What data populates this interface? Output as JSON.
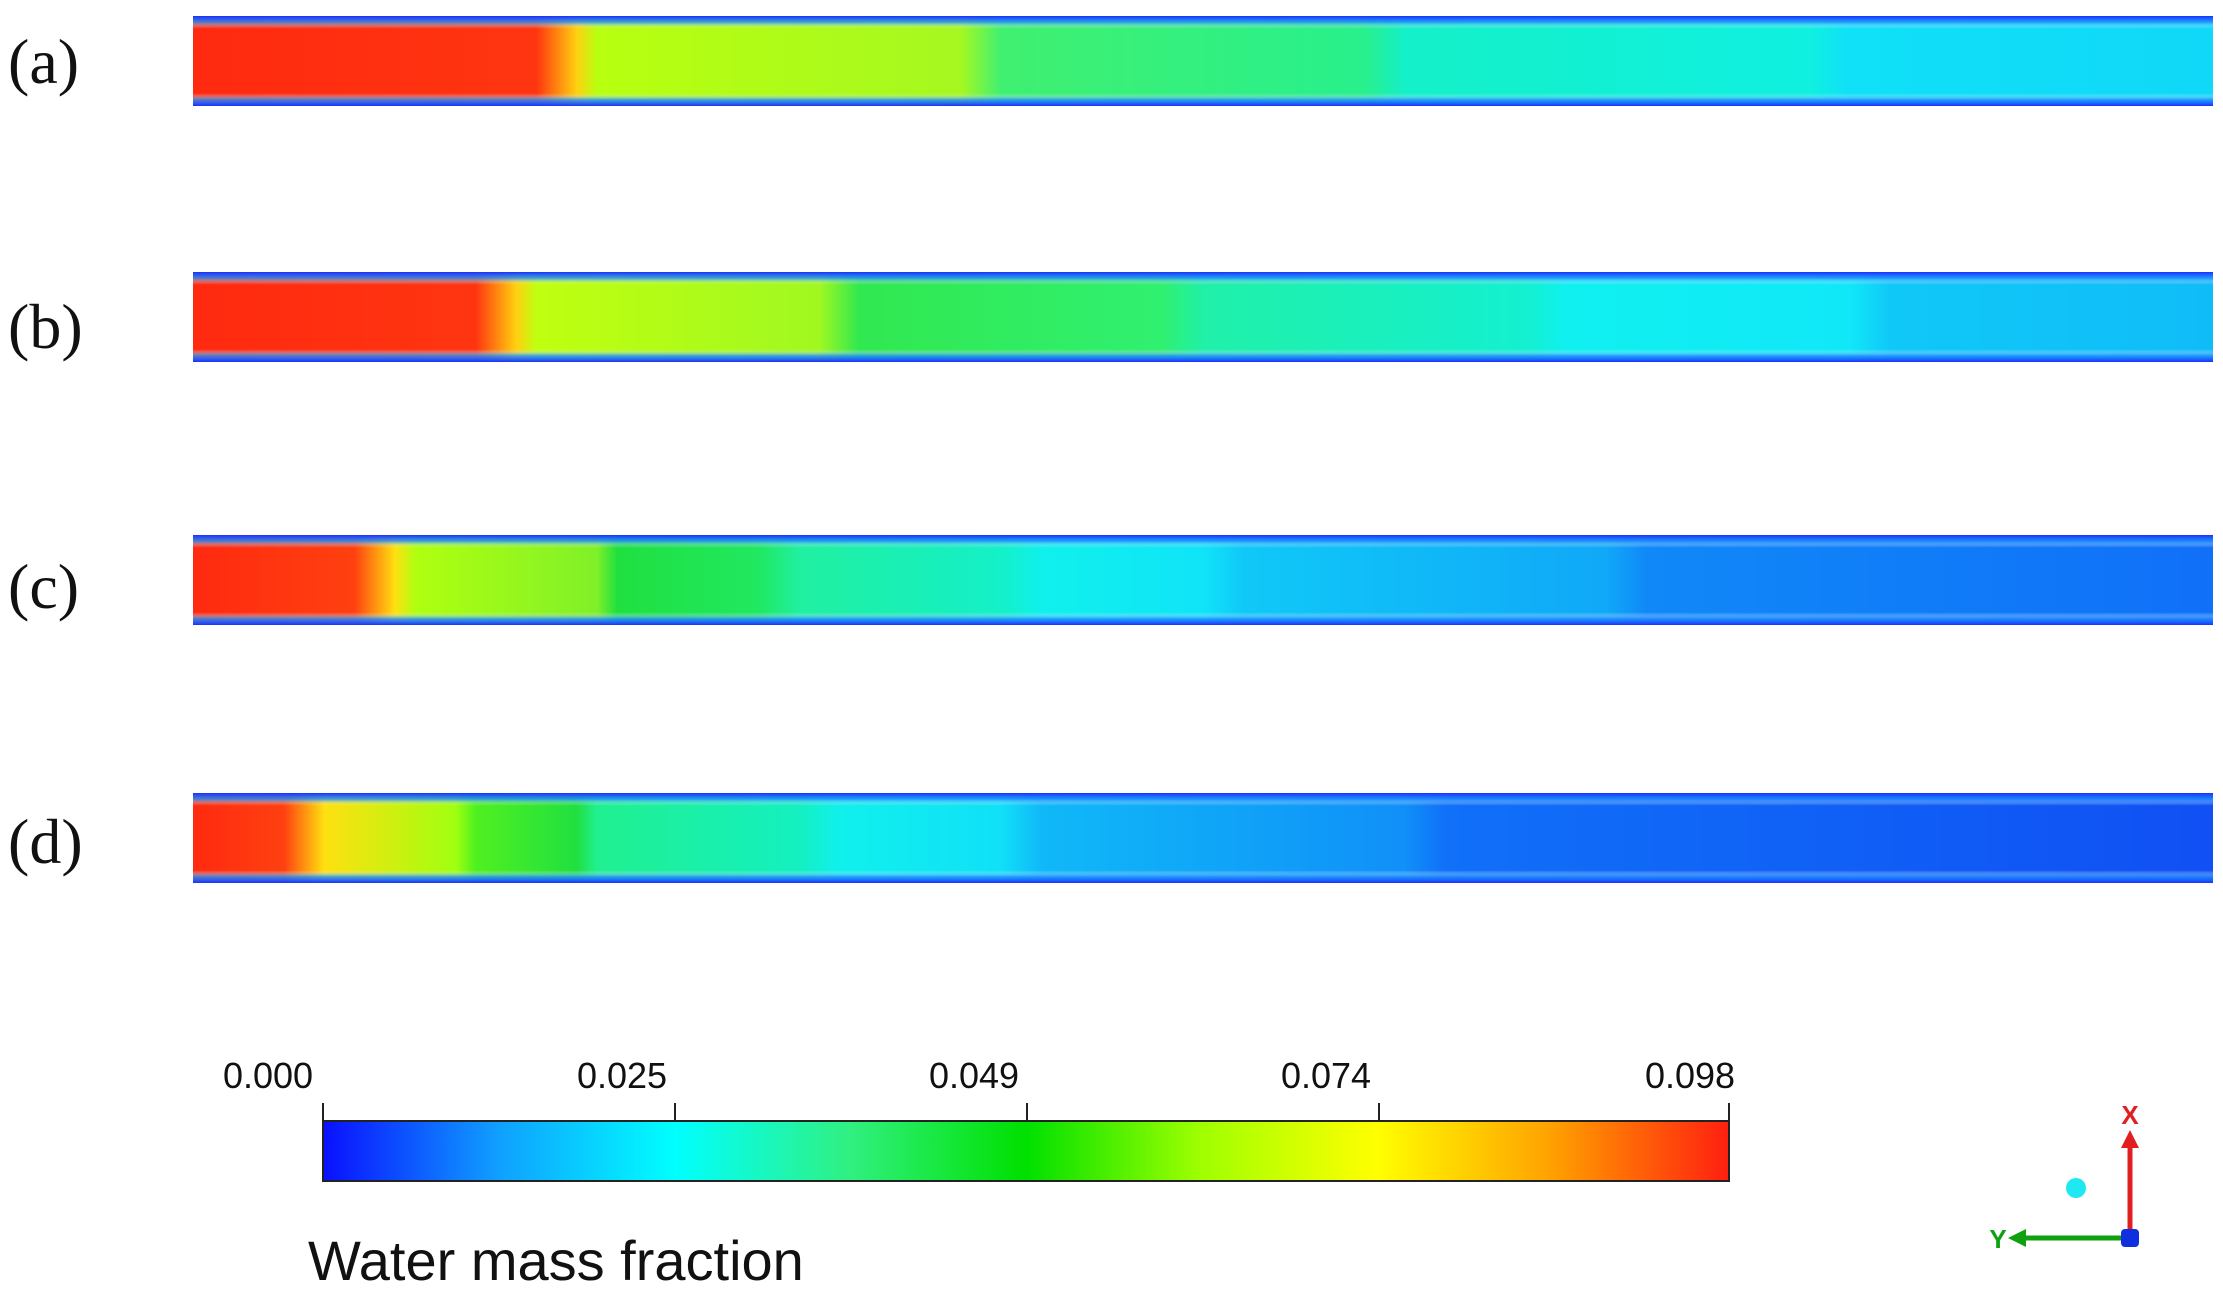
{
  "panels": [
    {
      "label": "(a)",
      "hot_fraction": 0.19
    },
    {
      "label": "(b)",
      "hot_fraction": 0.16
    },
    {
      "label": "(c)",
      "hot_fraction": 0.1
    },
    {
      "label": "(d)",
      "hot_fraction": 0.065
    }
  ],
  "colorbar": {
    "title": "Water mass fraction",
    "ticks": [
      "0.000",
      "0.025",
      "0.049",
      "0.074",
      "0.098"
    ],
    "min": 0.0,
    "max": 0.098,
    "colors": [
      "#0a10ff",
      "#10a0ff",
      "#00ffff",
      "#30f080",
      "#00e000",
      "#a0ff00",
      "#ffff00",
      "#ffa000",
      "#ff2010"
    ]
  },
  "axes": {
    "x_label": "X",
    "y_label": "Y",
    "x_color": "#e02020",
    "y_color": "#10a010",
    "z_color": "#1030e0"
  }
}
